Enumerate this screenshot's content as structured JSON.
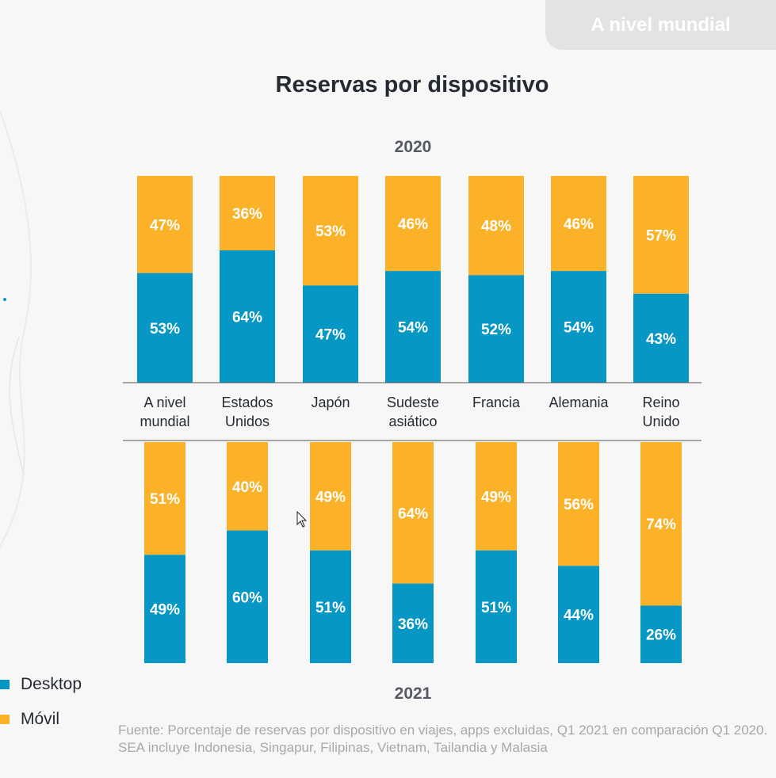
{
  "tab": {
    "label": "A nivel mundial"
  },
  "chart_data": {
    "type": "bar",
    "title": "Reservas por dispositivo",
    "stacked": true,
    "categories": [
      "A nivel\nmundial",
      "Estados\nUnidos",
      "Japón",
      "Sudeste\nasiático",
      "Francia",
      "Alemania",
      "Reino\nUnido"
    ],
    "panels": [
      {
        "year": "2020",
        "series": [
          {
            "name": "Desktop",
            "values": [
              53,
              64,
              47,
              54,
              52,
              54,
              43
            ]
          },
          {
            "name": "Móvil",
            "values": [
              47,
              36,
              53,
              46,
              48,
              46,
              57
            ]
          }
        ]
      },
      {
        "year": "2021",
        "series": [
          {
            "name": "Desktop",
            "values": [
              49,
              60,
              51,
              36,
              51,
              44,
              26
            ]
          },
          {
            "name": "Móvil",
            "values": [
              51,
              40,
              49,
              64,
              49,
              56,
              74
            ]
          }
        ]
      }
    ],
    "value_suffix": "%",
    "ylim": [
      0,
      100
    ],
    "grid": false,
    "legend": {
      "position": "bottom-left",
      "entries": [
        "Desktop",
        "Móvil"
      ]
    },
    "colors": {
      "Desktop": "#0697c4",
      "Móvil": "#fbb128"
    }
  },
  "source": "Fuente: Porcentaje de reservas por dispositivo en viajes, apps excluidas, Q1 2021 en comparación Q1 2020. SEA incluye Indonesia, Singapur, Filipinas, Vietnam, Tailandia y Malasia"
}
